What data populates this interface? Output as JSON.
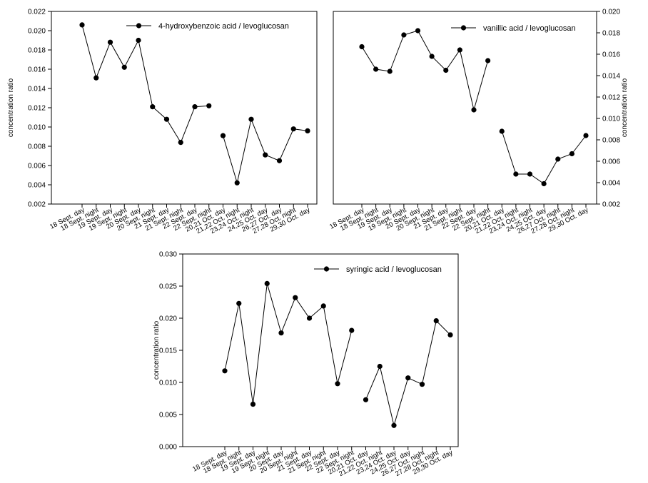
{
  "chart_data": [
    {
      "type": "line",
      "ylabel": "concentration ratio",
      "ylim": [
        0.002,
        0.022
      ],
      "yticks": [
        "0.002",
        "0.004",
        "0.006",
        "0.008",
        "0.010",
        "0.012",
        "0.014",
        "0.016",
        "0.018",
        "0.020",
        "0.022"
      ],
      "y_axis_side": "left",
      "legend_position": "top-right",
      "categories": [
        "18 Sept. day",
        "18 Sept. night",
        "19 Sept. day",
        "19 Sept. night",
        "20 Sept. day",
        "20 Sept. night",
        "21 Sept. day",
        "21 Sept. night",
        "22 Sept. day",
        "22 Sept. night",
        "20,21 Oct. day",
        "21,22 Oct. night",
        "23,24 Oct. night",
        "24,25 Oct. day",
        "26,27 Oct. day",
        "27,28 Oct. night",
        "29,30 Oct. day"
      ],
      "series": [
        {
          "name": "4-hydroxybenzoic acid / levoglucosan",
          "values": [
            0.0206,
            0.0151,
            0.0188,
            0.0162,
            0.019,
            0.0121,
            0.0108,
            0.0084,
            0.0121,
            0.0122,
            0.0091,
            0.0042,
            0.0108,
            0.0071,
            0.0065,
            0.0098,
            0.0096
          ],
          "segments": [
            [
              0,
              9
            ],
            [
              10,
              16
            ]
          ]
        }
      ]
    },
    {
      "type": "line",
      "ylabel": "concentration ratio",
      "ylim": [
        0.002,
        0.02
      ],
      "yticks": [
        "0.002",
        "0.004",
        "0.006",
        "0.008",
        "0.010",
        "0.012",
        "0.014",
        "0.016",
        "0.018",
        "0.020"
      ],
      "y_axis_side": "right",
      "legend_position": "top-right",
      "categories": [
        "18 Sept. day",
        "18 Sept. night",
        "19 Sept. day",
        "19 Sept. night",
        "20 Sept. day",
        "20 Sept. night",
        "21 Sept. day",
        "21 Sept. night",
        "22 Sept. day",
        "22 Sept. night",
        "20,21 Oct. day",
        "21,22 Oct. night",
        "23,24 Oct. night",
        "24,25 Oct. day",
        "26,27 Oct. night",
        "27,28 Oct. night",
        "29,30 Oct. day"
      ],
      "series": [
        {
          "name": "vanillic acid / levoglucosan",
          "values": [
            0.0167,
            0.0146,
            0.0144,
            0.0178,
            0.0182,
            0.0158,
            0.0145,
            0.0164,
            0.0108,
            0.0154,
            0.0088,
            0.0048,
            0.0048,
            0.0039,
            0.0062,
            0.0067,
            0.0084
          ],
          "segments": [
            [
              0,
              9
            ],
            [
              10,
              16
            ]
          ]
        }
      ]
    },
    {
      "type": "line",
      "ylabel": "concentration ratio",
      "ylim": [
        0.0,
        0.03
      ],
      "yticks": [
        "0.000",
        "0.005",
        "0.010",
        "0.015",
        "0.020",
        "0.025",
        "0.030"
      ],
      "y_axis_side": "left",
      "legend_position": "top-right",
      "categories": [
        "18 Sept. day",
        "18 Sept. night",
        "19 Sept. day",
        "19 Sept. night",
        "20 Sept. day",
        "20 Sept. night",
        "21 Sept. day",
        "21 Sept. night",
        "22 Sept. day",
        "22 Sept. night",
        "20,21 Oct. day",
        "21,22 Oct. night",
        "23,24 Oct. day",
        "24,25 Oct. day",
        "26,27 Oct. night",
        "27,28 Oct. night",
        "29,30 Oct. day"
      ],
      "series": [
        {
          "name": "syringic acid / levoglucosan",
          "values": [
            0.0118,
            0.0223,
            0.0066,
            0.0254,
            0.0177,
            0.0232,
            0.02,
            0.0219,
            0.0098,
            0.0181,
            0.0073,
            0.0125,
            0.0033,
            0.0107,
            0.0097,
            0.0196,
            0.0174
          ],
          "segments": [
            [
              0,
              9
            ],
            [
              10,
              16
            ]
          ]
        }
      ]
    }
  ]
}
